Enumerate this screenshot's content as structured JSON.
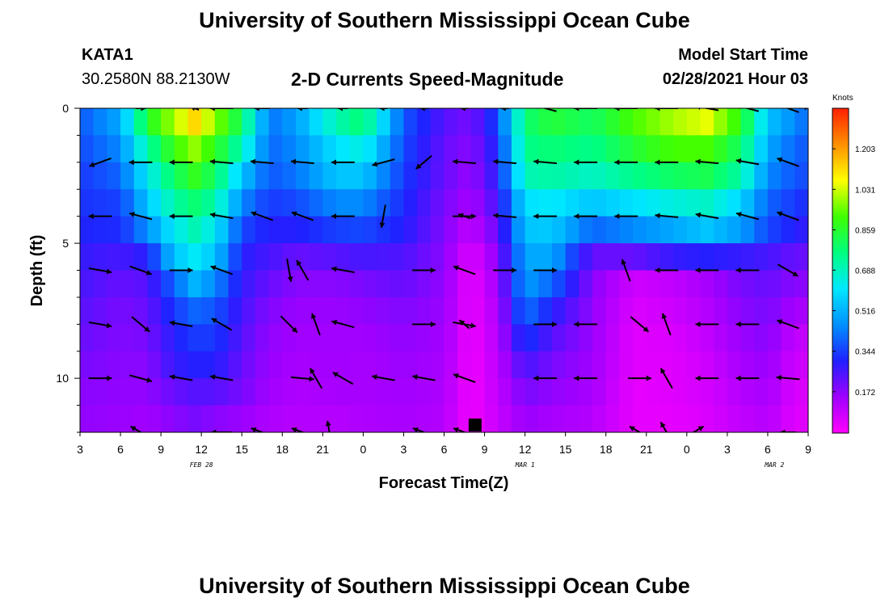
{
  "header": {
    "title": "University of Southern Mississippi Ocean Cube",
    "station_id": "KATA1",
    "station_coords": "30.2580N 88.2130W",
    "subtitle": "2-D Currents Speed-Magnitude",
    "model_label": "Model Start Time",
    "model_time": "02/28/2021 Hour 03"
  },
  "footer": {
    "title": "University of Southern Mississippi Ocean Cube"
  },
  "chart_data": {
    "type": "heatmap",
    "title": "2-D Currents Speed-Magnitude",
    "xlabel": "Forecast Time(Z)",
    "ylabel": "Depth (ft)",
    "x_range_hours": [
      3,
      57
    ],
    "y_range_ft": [
      0,
      12
    ],
    "y_inverted": true,
    "x_tick_labels": [
      "3",
      "6",
      "9",
      "12",
      "15",
      "18",
      "21",
      "0",
      "3",
      "6",
      "9",
      "12",
      "15",
      "18",
      "21",
      "0",
      "3",
      "6",
      "9"
    ],
    "y_tick_labels": [
      "0",
      "5",
      "10"
    ],
    "date_labels": [
      {
        "text": "FEB 28",
        "hour": 12
      },
      {
        "text": "MAR 1",
        "hour": 36
      },
      {
        "text": "MAR 2",
        "hour": 54.5
      }
    ],
    "colorbar": {
      "unit": "Knots",
      "min": 0,
      "max": 1.375,
      "tick_values": [
        "1.203",
        "1.031",
        "0.859",
        "0.688",
        "0.516",
        "0.344",
        "0.172"
      ],
      "colors": [
        "#ff00ff",
        "#a000ff",
        "#2020ff",
        "#0090ff",
        "#00e8ff",
        "#00ff80",
        "#40ff00",
        "#ffff00",
        "#ff9000",
        "#ff2000"
      ]
    },
    "current_time_marker_hour": 32.3,
    "speed_profile": {
      "depth_ft": [
        0,
        1,
        2,
        3,
        4,
        5,
        6,
        7,
        8,
        9,
        10,
        11,
        12
      ],
      "hour_samples": [
        {
          "h": 3,
          "s": [
            0.4,
            0.38,
            0.36,
            0.34,
            0.33,
            0.31,
            0.28,
            0.26,
            0.24,
            0.22,
            0.2,
            0.18,
            0.17
          ]
        },
        {
          "h": 6,
          "s": [
            0.55,
            0.5,
            0.45,
            0.4,
            0.35,
            0.32,
            0.26,
            0.22,
            0.2,
            0.19,
            0.18,
            0.17,
            0.16
          ]
        },
        {
          "h": 8,
          "s": [
            0.95,
            0.85,
            0.72,
            0.62,
            0.55,
            0.46,
            0.3,
            0.24,
            0.22,
            0.2,
            0.18,
            0.17,
            0.15
          ]
        },
        {
          "h": 10,
          "s": [
            1.12,
            1.0,
            0.9,
            0.8,
            0.72,
            0.62,
            0.55,
            0.4,
            0.34,
            0.3,
            0.28,
            0.22,
            0.18
          ]
        },
        {
          "h": 11.5,
          "s": [
            1.25,
            1.12,
            0.98,
            0.88,
            0.78,
            0.7,
            0.62,
            0.52,
            0.4,
            0.34,
            0.3,
            0.24,
            0.2
          ]
        },
        {
          "h": 13,
          "s": [
            1.12,
            0.98,
            0.88,
            0.8,
            0.72,
            0.62,
            0.55,
            0.45,
            0.38,
            0.34,
            0.3,
            0.24,
            0.18
          ]
        },
        {
          "h": 15,
          "s": [
            0.9,
            0.8,
            0.7,
            0.55,
            0.45,
            0.36,
            0.3,
            0.28,
            0.26,
            0.24,
            0.22,
            0.2,
            0.16
          ]
        },
        {
          "h": 17,
          "s": [
            0.45,
            0.42,
            0.4,
            0.38,
            0.34,
            0.3,
            0.26,
            0.22,
            0.19,
            0.17,
            0.16,
            0.15,
            0.13
          ]
        },
        {
          "h": 19,
          "s": [
            0.5,
            0.48,
            0.45,
            0.42,
            0.36,
            0.3,
            0.22,
            0.18,
            0.16,
            0.15,
            0.14,
            0.13,
            0.12
          ]
        },
        {
          "h": 22,
          "s": [
            0.75,
            0.7,
            0.6,
            0.55,
            0.45,
            0.35,
            0.24,
            0.18,
            0.16,
            0.15,
            0.15,
            0.14,
            0.12
          ]
        },
        {
          "h": 24,
          "s": [
            0.8,
            0.78,
            0.65,
            0.55,
            0.45,
            0.36,
            0.26,
            0.2,
            0.17,
            0.15,
            0.14,
            0.14,
            0.13
          ]
        },
        {
          "h": 27,
          "s": [
            0.4,
            0.38,
            0.36,
            0.34,
            0.32,
            0.3,
            0.25,
            0.22,
            0.19,
            0.17,
            0.16,
            0.15,
            0.14
          ]
        },
        {
          "h": 30,
          "s": [
            0.26,
            0.24,
            0.22,
            0.22,
            0.2,
            0.19,
            0.18,
            0.17,
            0.16,
            0.15,
            0.14,
            0.13,
            0.12
          ]
        },
        {
          "h": 32,
          "s": [
            0.22,
            0.2,
            0.18,
            0.16,
            0.14,
            0.1,
            0.05,
            0.03,
            0.03,
            0.02,
            0.02,
            0.02,
            0.02
          ]
        },
        {
          "h": 34,
          "s": [
            0.4,
            0.36,
            0.32,
            0.3,
            0.26,
            0.22,
            0.18,
            0.15,
            0.13,
            0.12,
            0.11,
            0.1,
            0.09
          ]
        },
        {
          "h": 36,
          "s": [
            0.8,
            0.78,
            0.75,
            0.7,
            0.6,
            0.55,
            0.5,
            0.48,
            0.42,
            0.34,
            0.26,
            0.2,
            0.16
          ]
        },
        {
          "h": 38,
          "s": [
            0.9,
            0.85,
            0.78,
            0.72,
            0.62,
            0.56,
            0.5,
            0.4,
            0.3,
            0.24,
            0.2,
            0.17,
            0.14
          ]
        },
        {
          "h": 41,
          "s": [
            0.85,
            0.8,
            0.75,
            0.68,
            0.55,
            0.4,
            0.22,
            0.18,
            0.17,
            0.16,
            0.15,
            0.14,
            0.12
          ]
        },
        {
          "h": 44,
          "s": [
            0.95,
            0.92,
            0.85,
            0.75,
            0.6,
            0.45,
            0.22,
            0.08,
            0.06,
            0.05,
            0.05,
            0.04,
            0.04
          ]
        },
        {
          "h": 47,
          "s": [
            1.1,
            1.0,
            0.92,
            0.8,
            0.65,
            0.5,
            0.28,
            0.1,
            0.08,
            0.06,
            0.05,
            0.05,
            0.04
          ]
        },
        {
          "h": 49.5,
          "s": [
            1.2,
            1.05,
            0.92,
            0.82,
            0.68,
            0.55,
            0.3,
            0.14,
            0.12,
            0.1,
            0.08,
            0.07,
            0.06
          ]
        },
        {
          "h": 52,
          "s": [
            0.95,
            0.88,
            0.8,
            0.72,
            0.58,
            0.48,
            0.28,
            0.2,
            0.18,
            0.16,
            0.14,
            0.12,
            0.1
          ]
        },
        {
          "h": 54,
          "s": [
            0.6,
            0.55,
            0.5,
            0.45,
            0.4,
            0.36,
            0.26,
            0.22,
            0.2,
            0.18,
            0.16,
            0.14,
            0.12
          ]
        },
        {
          "h": 56,
          "s": [
            0.5,
            0.45,
            0.4,
            0.38,
            0.34,
            0.3,
            0.22,
            0.18,
            0.14,
            0.1,
            0.08,
            0.06,
            0.05
          ]
        },
        {
          "h": 57,
          "s": [
            0.45,
            0.4,
            0.38,
            0.36,
            0.32,
            0.28,
            0.22,
            0.18,
            0.14,
            0.1,
            0.08,
            0.06,
            0.05
          ]
        }
      ]
    },
    "vectors": [
      {
        "h": 7.5,
        "d": 0,
        "dir": 0,
        "len": 0.4
      },
      {
        "h": 11.5,
        "d": 0,
        "dir": 200,
        "len": 0.35
      },
      {
        "h": 13.5,
        "d": 0,
        "dir": 180,
        "len": 0.9
      },
      {
        "h": 16.5,
        "d": 0,
        "dir": 180,
        "len": 0.6
      },
      {
        "h": 19.5,
        "d": 0,
        "dir": 180,
        "len": 0.4
      },
      {
        "h": 22.5,
        "d": 0,
        "dir": 180,
        "len": 0.4
      },
      {
        "h": 25.5,
        "d": 0,
        "dir": 180,
        "len": 0.3
      },
      {
        "h": 28.5,
        "d": 0,
        "dir": 180,
        "len": 0.3
      },
      {
        "h": 31.5,
        "d": 0,
        "dir": 180,
        "len": 0.3
      },
      {
        "h": 34.5,
        "d": 0,
        "dir": 180,
        "len": 0.3
      },
      {
        "h": 37.5,
        "d": 0,
        "dir": 195,
        "len": 0.9
      },
      {
        "h": 40.5,
        "d": 0,
        "dir": 180,
        "len": 0.9
      },
      {
        "h": 43.5,
        "d": 0,
        "dir": 180,
        "len": 0.9
      },
      {
        "h": 46.5,
        "d": 0,
        "dir": 180,
        "len": 0.9
      },
      {
        "h": 49.5,
        "d": 0,
        "dir": 190,
        "len": 0.9
      },
      {
        "h": 52.5,
        "d": 0,
        "dir": 195,
        "len": 0.9
      },
      {
        "h": 55.5,
        "d": 0,
        "dir": 200,
        "len": 0.9
      },
      {
        "h": 57,
        "d": 0,
        "dir": 200,
        "len": 0.5
      },
      {
        "h": 4.5,
        "d": 2,
        "dir": 160,
        "len": 0.9
      },
      {
        "h": 7.5,
        "d": 2,
        "dir": 180,
        "len": 0.9
      },
      {
        "h": 10.5,
        "d": 2,
        "dir": 180,
        "len": 0.9
      },
      {
        "h": 13.5,
        "d": 2,
        "dir": 185,
        "len": 0.9
      },
      {
        "h": 16.5,
        "d": 2,
        "dir": 185,
        "len": 0.9
      },
      {
        "h": 19.5,
        "d": 2,
        "dir": 185,
        "len": 0.9
      },
      {
        "h": 22.5,
        "d": 2,
        "dir": 180,
        "len": 0.9
      },
      {
        "h": 25.5,
        "d": 2,
        "dir": 165,
        "len": 0.9
      },
      {
        "h": 28.5,
        "d": 2,
        "dir": 140,
        "len": 0.8
      },
      {
        "h": 31.5,
        "d": 2,
        "dir": 185,
        "len": 0.9
      },
      {
        "h": 34.5,
        "d": 2,
        "dir": 185,
        "len": 0.9
      },
      {
        "h": 37.5,
        "d": 2,
        "dir": 185,
        "len": 0.9
      },
      {
        "h": 40.5,
        "d": 2,
        "dir": 180,
        "len": 0.9
      },
      {
        "h": 43.5,
        "d": 2,
        "dir": 180,
        "len": 0.9
      },
      {
        "h": 46.5,
        "d": 2,
        "dir": 180,
        "len": 0.9
      },
      {
        "h": 49.5,
        "d": 2,
        "dir": 185,
        "len": 0.9
      },
      {
        "h": 52.5,
        "d": 2,
        "dir": 190,
        "len": 0.9
      },
      {
        "h": 55.5,
        "d": 2,
        "dir": 200,
        "len": 0.9
      },
      {
        "h": 4.5,
        "d": 4,
        "dir": 180,
        "len": 0.9
      },
      {
        "h": 7.5,
        "d": 4,
        "dir": 195,
        "len": 0.9
      },
      {
        "h": 10.5,
        "d": 4,
        "dir": 180,
        "len": 0.9
      },
      {
        "h": 13.5,
        "d": 4,
        "dir": 190,
        "len": 0.9
      },
      {
        "h": 16.5,
        "d": 4,
        "dir": 200,
        "len": 0.9
      },
      {
        "h": 19.5,
        "d": 4,
        "dir": 200,
        "len": 0.9
      },
      {
        "h": 22.5,
        "d": 4,
        "dir": 180,
        "len": 0.9
      },
      {
        "h": 25.5,
        "d": 4,
        "dir": 100,
        "len": 0.9
      },
      {
        "h": 31.5,
        "d": 4,
        "dir": 0,
        "len": 0.9
      },
      {
        "h": 31.5,
        "d": 4,
        "dir": 200,
        "len": 0.5
      },
      {
        "h": 34.5,
        "d": 4,
        "dir": 185,
        "len": 0.9
      },
      {
        "h": 37.5,
        "d": 4,
        "dir": 180,
        "len": 0.9
      },
      {
        "h": 40.5,
        "d": 4,
        "dir": 180,
        "len": 0.9
      },
      {
        "h": 43.5,
        "d": 4,
        "dir": 180,
        "len": 0.9
      },
      {
        "h": 46.5,
        "d": 4,
        "dir": 185,
        "len": 0.9
      },
      {
        "h": 49.5,
        "d": 4,
        "dir": 190,
        "len": 0.9
      },
      {
        "h": 52.5,
        "d": 4,
        "dir": 195,
        "len": 0.9
      },
      {
        "h": 55.5,
        "d": 4,
        "dir": 200,
        "len": 0.9
      },
      {
        "h": 4.5,
        "d": 6,
        "dir": 10,
        "len": 0.9
      },
      {
        "h": 7.5,
        "d": 6,
        "dir": 20,
        "len": 0.9
      },
      {
        "h": 10.5,
        "d": 6,
        "dir": 0,
        "len": 0.9
      },
      {
        "h": 13.5,
        "d": 6,
        "dir": 200,
        "len": 0.9
      },
      {
        "h": 18.5,
        "d": 6,
        "dir": 80,
        "len": 0.9
      },
      {
        "h": 19.5,
        "d": 6,
        "dir": 240,
        "len": 0.9
      },
      {
        "h": 22.5,
        "d": 6,
        "dir": 190,
        "len": 0.9
      },
      {
        "h": 28.5,
        "d": 6,
        "dir": 0,
        "len": 0.9
      },
      {
        "h": 31.5,
        "d": 6,
        "dir": 200,
        "len": 0.9
      },
      {
        "h": 34.5,
        "d": 6,
        "dir": 0,
        "len": 0.9
      },
      {
        "h": 37.5,
        "d": 6,
        "dir": 0,
        "len": 0.9
      },
      {
        "h": 43.5,
        "d": 6,
        "dir": 250,
        "len": 0.9
      },
      {
        "h": 46.5,
        "d": 6,
        "dir": 180,
        "len": 0.9
      },
      {
        "h": 49.5,
        "d": 6,
        "dir": 180,
        "len": 0.9
      },
      {
        "h": 52.5,
        "d": 6,
        "dir": 180,
        "len": 0.9
      },
      {
        "h": 55.5,
        "d": 6,
        "dir": 30,
        "len": 0.9
      },
      {
        "h": 4.5,
        "d": 8,
        "dir": 10,
        "len": 0.9
      },
      {
        "h": 7.5,
        "d": 8,
        "dir": 40,
        "len": 0.9
      },
      {
        "h": 10.5,
        "d": 8,
        "dir": 190,
        "len": 0.9
      },
      {
        "h": 13.5,
        "d": 8,
        "dir": 210,
        "len": 0.9
      },
      {
        "h": 18.5,
        "d": 8,
        "dir": 45,
        "len": 0.9
      },
      {
        "h": 20.5,
        "d": 8,
        "dir": 250,
        "len": 0.9
      },
      {
        "h": 22.5,
        "d": 8,
        "dir": 195,
        "len": 0.9
      },
      {
        "h": 28.5,
        "d": 8,
        "dir": 0,
        "len": 0.9
      },
      {
        "h": 31.5,
        "d": 8,
        "dir": 10,
        "len": 0.9
      },
      {
        "h": 31.5,
        "d": 8,
        "dir": 220,
        "len": 0.5
      },
      {
        "h": 37.5,
        "d": 8,
        "dir": 0,
        "len": 0.9
      },
      {
        "h": 40.5,
        "d": 8,
        "dir": 180,
        "len": 0.9
      },
      {
        "h": 44.5,
        "d": 8,
        "dir": 40,
        "len": 0.9
      },
      {
        "h": 46.5,
        "d": 8,
        "dir": 250,
        "len": 0.9
      },
      {
        "h": 49.5,
        "d": 8,
        "dir": 180,
        "len": 0.9
      },
      {
        "h": 52.5,
        "d": 8,
        "dir": 180,
        "len": 0.9
      },
      {
        "h": 55.5,
        "d": 8,
        "dir": 200,
        "len": 0.9
      },
      {
        "h": 4.5,
        "d": 10,
        "dir": 0,
        "len": 0.9
      },
      {
        "h": 7.5,
        "d": 10,
        "dir": 15,
        "len": 0.9
      },
      {
        "h": 10.5,
        "d": 10,
        "dir": 190,
        "len": 0.9
      },
      {
        "h": 13.5,
        "d": 10,
        "dir": 190,
        "len": 0.9
      },
      {
        "h": 19.5,
        "d": 10,
        "dir": 5,
        "len": 0.9
      },
      {
        "h": 20.5,
        "d": 10,
        "dir": 240,
        "len": 0.9
      },
      {
        "h": 22.5,
        "d": 10,
        "dir": 210,
        "len": 0.9
      },
      {
        "h": 25.5,
        "d": 10,
        "dir": 190,
        "len": 0.9
      },
      {
        "h": 28.5,
        "d": 10,
        "dir": 190,
        "len": 0.9
      },
      {
        "h": 31.5,
        "d": 10,
        "dir": 200,
        "len": 0.9
      },
      {
        "h": 37.5,
        "d": 10,
        "dir": 180,
        "len": 0.9
      },
      {
        "h": 40.5,
        "d": 10,
        "dir": 180,
        "len": 0.9
      },
      {
        "h": 44.5,
        "d": 10,
        "dir": 0,
        "len": 0.9
      },
      {
        "h": 46.5,
        "d": 10,
        "dir": 240,
        "len": 0.9
      },
      {
        "h": 49.5,
        "d": 10,
        "dir": 180,
        "len": 0.9
      },
      {
        "h": 52.5,
        "d": 10,
        "dir": 180,
        "len": 0.9
      },
      {
        "h": 55.5,
        "d": 10,
        "dir": 185,
        "len": 0.9
      },
      {
        "h": 3,
        "d": 12,
        "dir": 200,
        "len": 0.9
      },
      {
        "h": 7.5,
        "d": 12,
        "dir": 210,
        "len": 0.9
      },
      {
        "h": 13.5,
        "d": 12,
        "dir": 180,
        "len": 0.8
      },
      {
        "h": 16.5,
        "d": 12,
        "dir": 200,
        "len": 0.9
      },
      {
        "h": 19.5,
        "d": 12,
        "dir": 200,
        "len": 0.9
      },
      {
        "h": 21.5,
        "d": 12,
        "dir": 260,
        "len": 0.9
      },
      {
        "h": 28.5,
        "d": 12,
        "dir": 200,
        "len": 0.9
      },
      {
        "h": 31.5,
        "d": 12,
        "dir": 200,
        "len": 0.9
      },
      {
        "h": 44.5,
        "d": 12,
        "dir": 210,
        "len": 0.9
      },
      {
        "h": 46.5,
        "d": 12,
        "dir": 240,
        "len": 0.9
      },
      {
        "h": 48.5,
        "d": 12,
        "dir": 330,
        "len": 0.9
      },
      {
        "h": 55.5,
        "d": 12,
        "dir": 180,
        "len": 0.6
      }
    ]
  }
}
